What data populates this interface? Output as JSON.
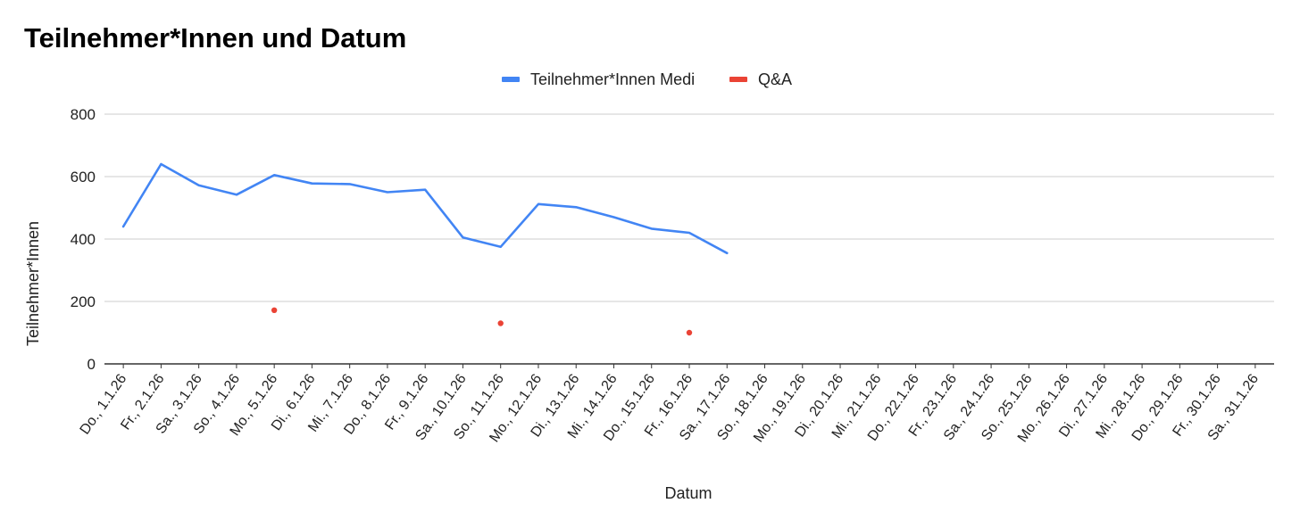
{
  "chart_data": {
    "type": "line",
    "title": "Teilnehmer*Innen und Datum",
    "xlabel": "Datum",
    "ylabel": "Teilnehmer*Innen",
    "ylim": [
      0,
      800
    ],
    "yticks": [
      0,
      200,
      400,
      600,
      800
    ],
    "grid": true,
    "legend_position": "top",
    "categories": [
      "Do., 1.1.26",
      "Fr., 2.1.26",
      "Sa., 3.1.26",
      "So., 4.1.26",
      "Mo., 5.1.26",
      "Di., 6.1.26",
      "Mi., 7.1.26",
      "Do., 8.1.26",
      "Fr., 9.1.26",
      "Sa., 10.1.26",
      "So., 11.1.26",
      "Mo., 12.1.26",
      "Di., 13.1.26",
      "Mi., 14.1.26",
      "Do., 15.1.26",
      "Fr., 16.1.26",
      "Sa., 17.1.26",
      "So., 18.1.26",
      "Mo., 19.1.26",
      "Di., 20.1.26",
      "Mi., 21.1.26",
      "Do., 22.1.26",
      "Fr., 23.1.26",
      "Sa., 24.1.26",
      "So., 25.1.26",
      "Mo., 26.1.26",
      "Di., 27.1.26",
      "Mi., 28.1.26",
      "Do., 29.1.26",
      "Fr., 30.1.26",
      "Sa., 31.1.26"
    ],
    "series": [
      {
        "name": "Teilnehmer*Innen Medi",
        "kind": "line",
        "color": "#4285f4",
        "values": [
          440,
          640,
          572,
          542,
          605,
          578,
          576,
          550,
          558,
          405,
          375,
          512,
          502,
          470,
          433,
          420,
          355,
          null,
          null,
          null,
          null,
          null,
          null,
          null,
          null,
          null,
          null,
          null,
          null,
          null,
          null
        ]
      },
      {
        "name": "Q&A",
        "kind": "points",
        "color": "#ea4335",
        "values": [
          null,
          null,
          null,
          null,
          172,
          null,
          null,
          null,
          null,
          null,
          130,
          null,
          null,
          null,
          null,
          100,
          null,
          null,
          null,
          null,
          null,
          null,
          null,
          null,
          null,
          null,
          null,
          null,
          null,
          null,
          null
        ]
      }
    ]
  }
}
